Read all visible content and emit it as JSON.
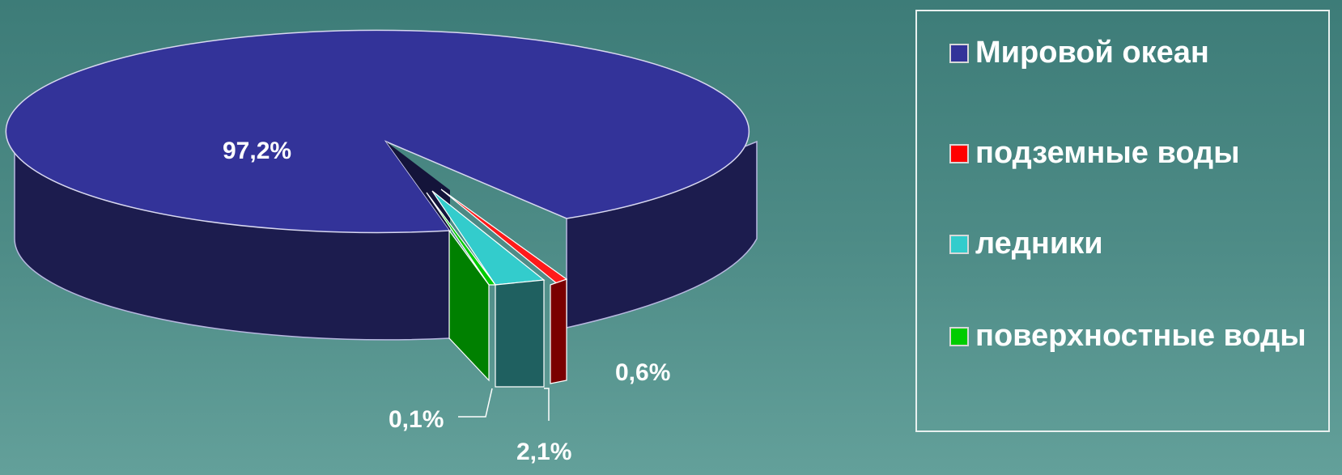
{
  "chart_data": {
    "type": "pie",
    "title": "",
    "labels": [
      "Мировой океан",
      "подземные воды",
      "ледники",
      "поверхностные воды"
    ],
    "values": [
      97.2,
      0.6,
      2.1,
      0.1
    ],
    "data_labels": [
      "97,2%",
      "0,6%",
      "2,1%",
      "0,1%"
    ],
    "colors": [
      "#333399",
      "#ff0000",
      "#33cccc",
      "#00cc00"
    ],
    "legend_placement": "right",
    "three_d": true,
    "exploded": [
      "подземные воды",
      "ледники",
      "поверхностные воды"
    ]
  }
}
